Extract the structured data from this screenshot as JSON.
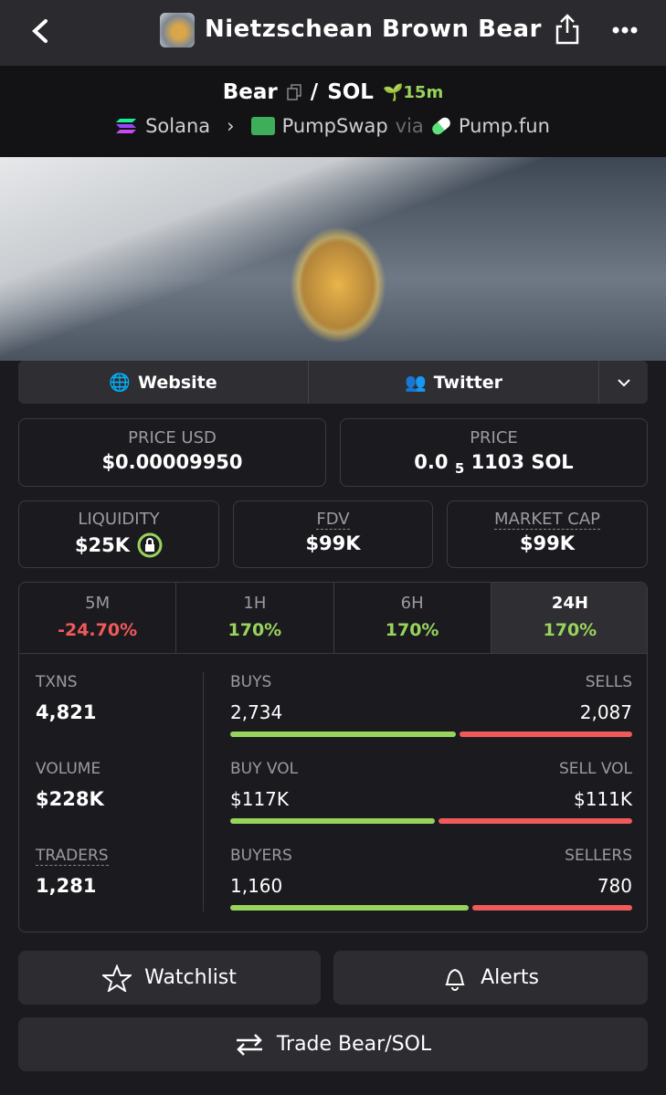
{
  "header": {
    "title": "Nietzschean Brown Bear"
  },
  "pair": {
    "base": "Bear",
    "separator": "/",
    "quote": "SOL",
    "age": "15m",
    "chain": "Solana",
    "dex": "PumpSwap",
    "via": "via",
    "launchpad": "Pump.fun"
  },
  "links": [
    "Website",
    "Twitter"
  ],
  "prices": [
    {
      "label": "PRICE USD",
      "value": "$0.00009950"
    },
    {
      "label": "PRICE",
      "prefix": "0.0",
      "zeros": "5",
      "rest": "1103 SOL"
    }
  ],
  "metrics": [
    {
      "label": "LIQUIDITY",
      "value": "$25K"
    },
    {
      "label": "FDV",
      "value": "$99K"
    },
    {
      "label": "MARKET CAP",
      "value": "$99K"
    }
  ],
  "timeframes": [
    {
      "label": "5M",
      "change": "-24.70%"
    },
    {
      "label": "1H",
      "change": "170%"
    },
    {
      "label": "6H",
      "change": "170%"
    },
    {
      "label": "24H",
      "change": "170%"
    }
  ],
  "totals": [
    {
      "label": "TXNS",
      "value": "4,821"
    },
    {
      "label": "VOLUME",
      "value": "$228K"
    },
    {
      "label": "TRADERS",
      "value": "1,281"
    }
  ],
  "splits": [
    {
      "left_label": "BUYS",
      "left": {
        "value": 2734,
        "label": "2,734"
      },
      "right_label": "SELLS",
      "right": {
        "value": 2087,
        "label": "2,087"
      }
    },
    {
      "left_label": "BUY VOL",
      "left": {
        "value": 117000,
        "label": "$117K"
      },
      "right_label": "SELL VOL",
      "right": {
        "value": 111000,
        "label": "$111K"
      }
    },
    {
      "left_label": "BUYERS",
      "left": {
        "value": 1160,
        "label": "1,160"
      },
      "right_label": "SELLERS",
      "right": {
        "value": 780,
        "label": "780"
      }
    }
  ],
  "actions": {
    "watchlist": "Watchlist",
    "alerts": "Alerts",
    "trade": "Trade Bear/SOL"
  }
}
